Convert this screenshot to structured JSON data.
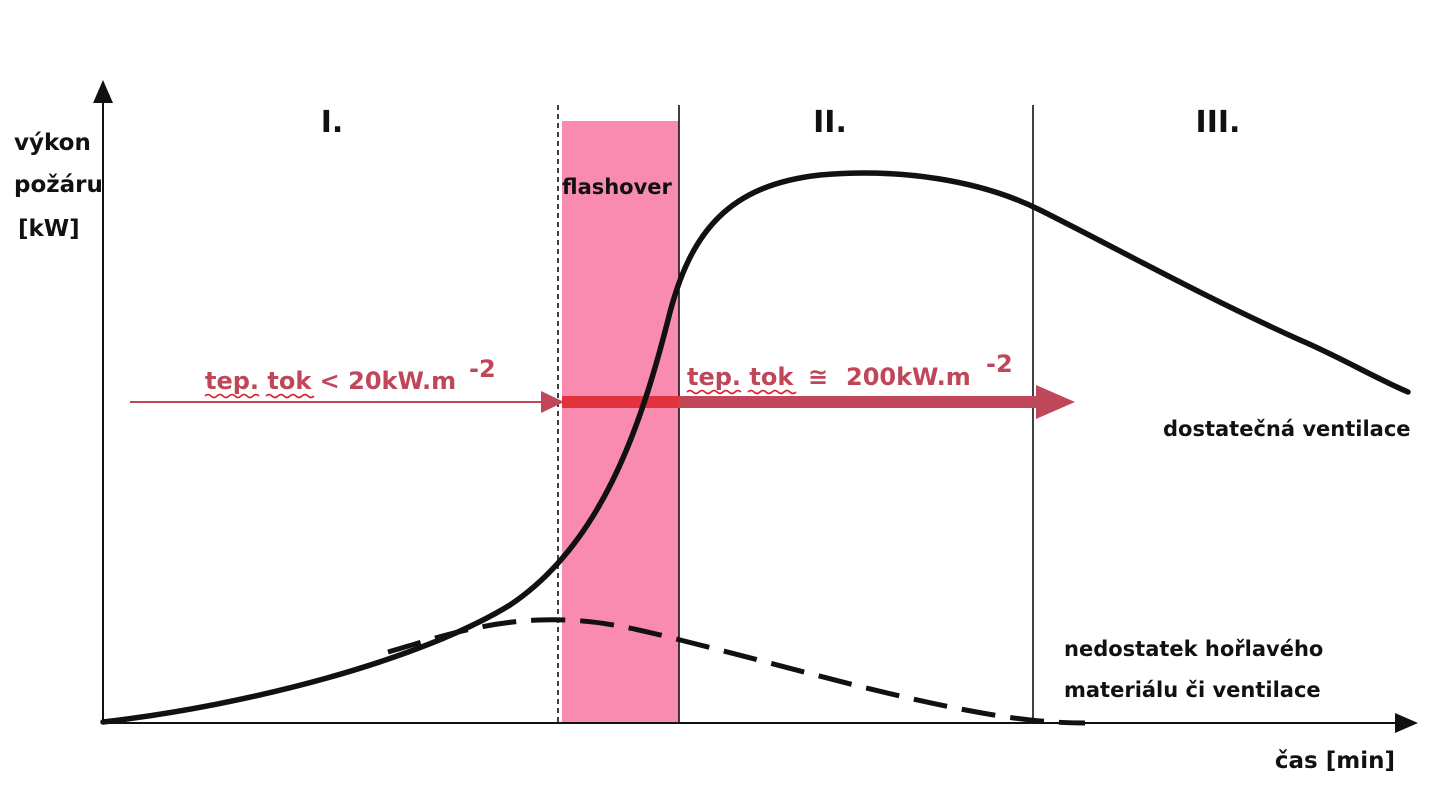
{
  "y_axis_label": [
    "výkon",
    "požáru",
    "[kW]"
  ],
  "x_axis_label": "čas [min]",
  "phases": [
    "I.",
    "II.",
    "III."
  ],
  "flashover_label": "flashover",
  "flux_low": {
    "text": "tep. tok < 20kW.m",
    "sup": "-2"
  },
  "flux_high": {
    "text": "tep. tok",
    "approx": "≅",
    "value": "200kW.m",
    "sup": "-2"
  },
  "label_ventilation": "dostatečná ventilace",
  "label_lack": [
    "nedostatek hořlavého",
    "materiálu či ventilace"
  ],
  "colors": {
    "flashover_zone": "#f98bb0",
    "flux_arrow": "#c0475a",
    "flux_arrow_overlap": "#e2323c",
    "curve": "#111111"
  }
}
